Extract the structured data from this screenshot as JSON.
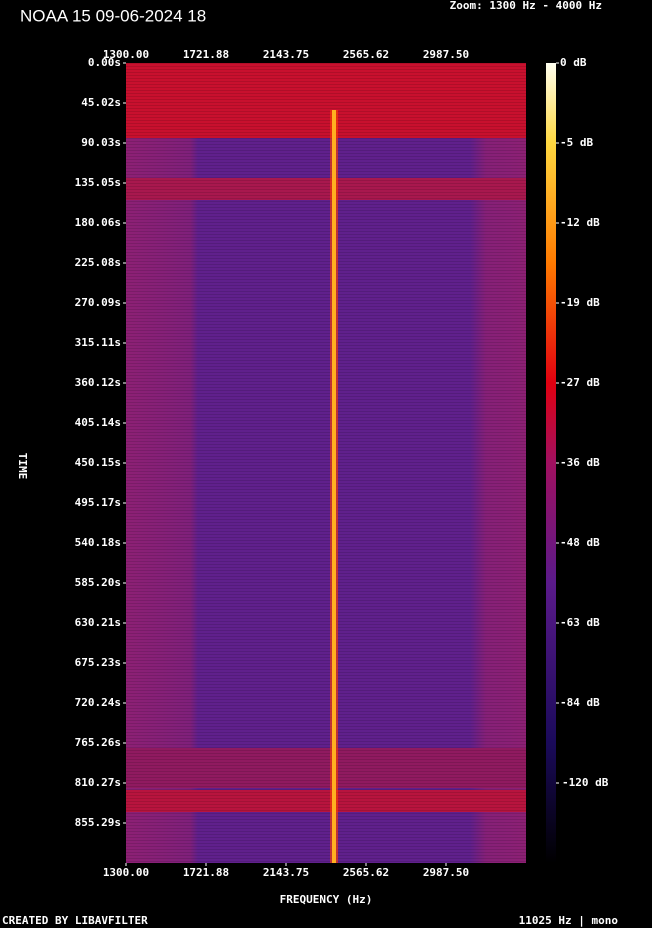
{
  "chart_data": {
    "type": "spectrogram",
    "title": "NOAA 15 09-06-2024 18",
    "subtitle": "Zoom: 1300 Hz - 4000 Hz",
    "x_label": "FREQUENCY (Hz)",
    "y_label": "TIME",
    "footer_left": "CREATED BY LIBAVFILTER",
    "footer_right": "11025 Hz | mono",
    "xlim": [
      1300,
      3409.375
    ],
    "xticks": [
      {
        "value": 1300,
        "label": "1300.00"
      },
      {
        "value": 1721.88,
        "label": "1721.88"
      },
      {
        "value": 2143.75,
        "label": "2143.75"
      },
      {
        "value": 2565.62,
        "label": "2565.62"
      },
      {
        "value": 2987.5,
        "label": "2987.50"
      }
    ],
    "ylim": [
      0,
      900.3
    ],
    "yticks": [
      {
        "value": 0,
        "label": "0.00s"
      },
      {
        "value": 45.02,
        "label": "45.02s"
      },
      {
        "value": 90.03,
        "label": "90.03s"
      },
      {
        "value": 135.05,
        "label": "135.05s"
      },
      {
        "value": 180.06,
        "label": "180.06s"
      },
      {
        "value": 225.08,
        "label": "225.08s"
      },
      {
        "value": 270.09,
        "label": "270.09s"
      },
      {
        "value": 315.11,
        "label": "315.11s"
      },
      {
        "value": 360.12,
        "label": "360.12s"
      },
      {
        "value": 405.14,
        "label": "405.14s"
      },
      {
        "value": 450.15,
        "label": "450.15s"
      },
      {
        "value": 495.17,
        "label": "495.17s"
      },
      {
        "value": 540.18,
        "label": "540.18s"
      },
      {
        "value": 585.2,
        "label": "585.20s"
      },
      {
        "value": 630.21,
        "label": "630.21s"
      },
      {
        "value": 675.23,
        "label": "675.23s"
      },
      {
        "value": 720.24,
        "label": "720.24s"
      },
      {
        "value": 765.26,
        "label": "765.26s"
      },
      {
        "value": 810.27,
        "label": "810.27s"
      },
      {
        "value": 855.29,
        "label": "855.29s"
      }
    ],
    "colorbar_ticks": [
      {
        "value": 0,
        "label": "0 dB"
      },
      {
        "value": -5,
        "label": "-5 dB"
      },
      {
        "value": -12,
        "label": "-12 dB"
      },
      {
        "value": -19,
        "label": "-19 dB"
      },
      {
        "value": -27,
        "label": "-27 dB"
      },
      {
        "value": -36,
        "label": "-36 dB"
      },
      {
        "value": -48,
        "label": "-48 dB"
      },
      {
        "value": -63,
        "label": "-63 dB"
      },
      {
        "value": -84,
        "label": "-84 dB"
      },
      {
        "value": -120,
        "label": "-120 dB"
      }
    ]
  }
}
